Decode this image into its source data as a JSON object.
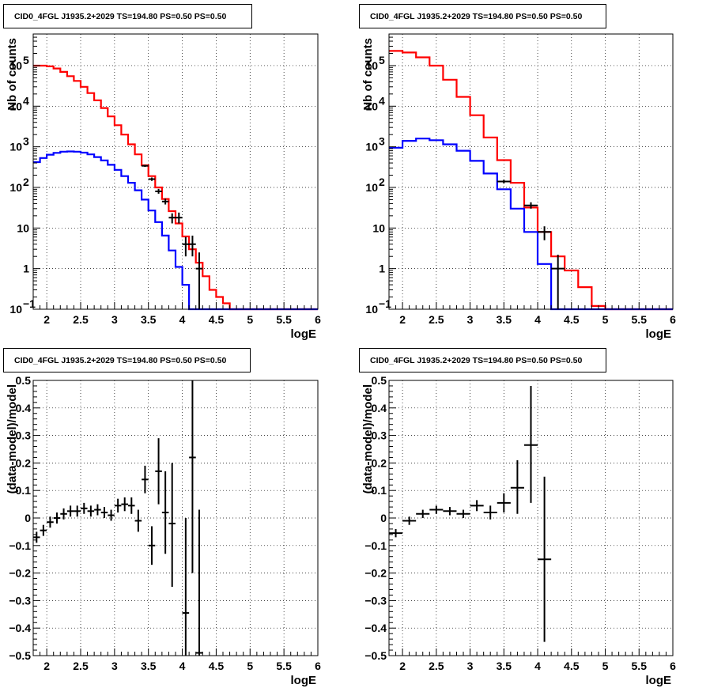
{
  "chart_data": [
    {
      "type": "line",
      "title": "CID0_4FGL J1935.2+2029 TS=194.80 PS=0.50 PS=0.50",
      "xlabel": "logE",
      "ylabel": "Nb of counts",
      "xlim": [
        1.8,
        6.0
      ],
      "ylim": [
        0.1,
        600000
      ],
      "yscale": "log",
      "grid": true,
      "x_ticks": [
        "2",
        "2.5",
        "3",
        "3.5",
        "4",
        "4.5",
        "5",
        "5.5",
        "6"
      ],
      "y_ticks": [
        {
          "value": 0.1,
          "label": "10",
          "exp": "−1"
        },
        {
          "value": 1,
          "label": "1",
          "exp": ""
        },
        {
          "value": 10,
          "label": "10",
          "exp": ""
        },
        {
          "value": 100,
          "label": "10",
          "exp": "2"
        },
        {
          "value": 1000,
          "label": "10",
          "exp": "3"
        },
        {
          "value": 10000,
          "label": "10",
          "exp": "4"
        },
        {
          "value": 100000,
          "label": "10",
          "exp": "5"
        }
      ],
      "x_edges": [
        1.8,
        1.9,
        2.0,
        2.1,
        2.2,
        2.3,
        2.4,
        2.5,
        2.6,
        2.7,
        2.8,
        2.9,
        3.0,
        3.1,
        3.2,
        3.3,
        3.4,
        3.5,
        3.6,
        3.7,
        3.8,
        3.9,
        4.0,
        4.1,
        4.2,
        4.3,
        4.4,
        4.5,
        4.6,
        4.7,
        4.8,
        4.9,
        5.0,
        5.1,
        5.2,
        5.3,
        5.4,
        5.5,
        5.6,
        5.7,
        5.8,
        5.9,
        6.0
      ],
      "series": [
        {
          "color": "#ff0000",
          "style": "step",
          "values": [
            100000,
            100000,
            96000,
            85000,
            70000,
            55000,
            42000,
            30000,
            21000,
            14000,
            9000,
            5600,
            3400,
            2000,
            1150,
            650,
            350,
            190,
            100,
            52,
            26,
            13,
            6.2,
            3,
            1.4,
            0.65,
            0.3,
            0.2,
            0.14,
            0.1,
            0.1,
            0.1,
            0.1,
            0.1,
            0.1,
            0.1,
            0.1,
            0.1,
            0.1,
            0.1,
            0.1,
            0.1
          ]
        },
        {
          "color": "#0000ff",
          "style": "step",
          "values": [
            420,
            530,
            640,
            710,
            760,
            770,
            760,
            720,
            650,
            560,
            460,
            360,
            270,
            190,
            130,
            85,
            50,
            27,
            14,
            6.5,
            2.8,
            1.1,
            0.4,
            0.1,
            0.1,
            0.1,
            0.1,
            0.1,
            0.1,
            0.1,
            0.1,
            0.1,
            0.1,
            0.1,
            0.1,
            0.1,
            0.1,
            0.1,
            0.1,
            0.1,
            0.1,
            0.1
          ]
        },
        {
          "color": "#000000",
          "style": "errorbar",
          "points": [
            {
              "x": 3.45,
              "y": 340,
              "lo": 320,
              "hi": 360,
              "xerr": 0.05
            },
            {
              "x": 3.55,
              "y": 160,
              "lo": 145,
              "hi": 175,
              "xerr": 0.05
            },
            {
              "x": 3.65,
              "y": 80,
              "lo": 70,
              "hi": 92,
              "xerr": 0.05
            },
            {
              "x": 3.75,
              "y": 45,
              "lo": 38,
              "hi": 53,
              "xerr": 0.05
            },
            {
              "x": 3.85,
              "y": 18,
              "lo": 13,
              "hi": 23,
              "xerr": 0.05
            },
            {
              "x": 3.95,
              "y": 18,
              "lo": 13,
              "hi": 24,
              "xerr": 0.05
            },
            {
              "x": 4.05,
              "y": 4,
              "lo": 2,
              "hi": 6,
              "xerr": 0.05
            },
            {
              "x": 4.15,
              "y": 4,
              "lo": 2,
              "hi": 6.5,
              "xerr": 0.05
            },
            {
              "x": 4.25,
              "y": 1,
              "lo": 0.1,
              "hi": 2.5,
              "xerr": 0.05
            }
          ]
        }
      ]
    },
    {
      "type": "line",
      "title": "CID0_4FGL J1935.2+2029 TS=194.80 PS=0.50 PS=0.50",
      "xlabel": "logE",
      "ylabel": "Nb of counts",
      "xlim": [
        1.8,
        6.0
      ],
      "ylim": [
        0.1,
        600000
      ],
      "yscale": "log",
      "grid": true,
      "x_ticks": [
        "2",
        "2.5",
        "3",
        "3.5",
        "4",
        "4.5",
        "5",
        "5.5",
        "6"
      ],
      "y_ticks": [
        {
          "value": 0.1,
          "label": "10",
          "exp": "−1"
        },
        {
          "value": 1,
          "label": "1",
          "exp": ""
        },
        {
          "value": 10,
          "label": "10",
          "exp": ""
        },
        {
          "value": 100,
          "label": "10",
          "exp": "2"
        },
        {
          "value": 1000,
          "label": "10",
          "exp": "3"
        },
        {
          "value": 10000,
          "label": "10",
          "exp": "4"
        },
        {
          "value": 100000,
          "label": "10",
          "exp": "5"
        }
      ],
      "x_edges": [
        1.8,
        2.0,
        2.2,
        2.4,
        2.6,
        2.8,
        3.0,
        3.2,
        3.4,
        3.6,
        3.8,
        4.0,
        4.2,
        4.4,
        4.6,
        4.8,
        5.0,
        5.2,
        5.4,
        5.6,
        5.8,
        6.0
      ],
      "series": [
        {
          "color": "#ff0000",
          "style": "step",
          "values": [
            230000,
            210000,
            160000,
            100000,
            45000,
            17000,
            6000,
            1700,
            470,
            130,
            32,
            8,
            2,
            0.9,
            0.35,
            0.12,
            0.1,
            0.1,
            0.1,
            0.1,
            0.1
          ]
        },
        {
          "color": "#0000ff",
          "style": "step",
          "values": [
            950,
            1400,
            1600,
            1450,
            1150,
            800,
            450,
            220,
            90,
            30,
            8,
            1.3,
            0.1,
            0.1,
            0.1,
            0.1,
            0.1,
            0.1,
            0.1,
            0.1,
            0.1
          ]
        },
        {
          "color": "#000000",
          "style": "errorbar",
          "points": [
            {
              "x": 3.5,
              "y": 140,
              "lo": 125,
              "hi": 155,
              "xerr": 0.1
            },
            {
              "x": 3.9,
              "y": 36,
              "lo": 30,
              "hi": 43,
              "xerr": 0.1
            },
            {
              "x": 4.1,
              "y": 8,
              "lo": 5,
              "hi": 11,
              "xerr": 0.1
            },
            {
              "x": 4.3,
              "y": 1,
              "lo": 0.1,
              "hi": 2.2,
              "xerr": 0.1
            }
          ]
        }
      ]
    },
    {
      "type": "scatter",
      "title": "CID0_4FGL J1935.2+2029 TS=194.80 PS=0.50 PS=0.50",
      "xlabel": "logE",
      "ylabel": "(data-model)/model",
      "xlim": [
        1.8,
        6.0
      ],
      "ylim": [
        -0.5,
        0.5
      ],
      "grid": true,
      "x_ticks": [
        "2",
        "2.5",
        "3",
        "3.5",
        "4",
        "4.5",
        "5",
        "5.5",
        "6"
      ],
      "y_ticks": [
        "−0.5",
        "−0.4",
        "−0.3",
        "−0.2",
        "−0.1",
        "0",
        "0.1",
        "0.2",
        "0.3",
        "0.4",
        "0.5"
      ],
      "series": [
        {
          "color": "#000000",
          "style": "errorbar",
          "points": [
            {
              "x": 1.85,
              "y": -0.07,
              "lo": -0.09,
              "hi": -0.05,
              "xerr": 0.05
            },
            {
              "x": 1.95,
              "y": -0.045,
              "lo": -0.065,
              "hi": -0.025,
              "xerr": 0.05
            },
            {
              "x": 2.05,
              "y": -0.015,
              "lo": -0.035,
              "hi": 0.005,
              "xerr": 0.05
            },
            {
              "x": 2.15,
              "y": 0.0,
              "lo": -0.02,
              "hi": 0.02,
              "xerr": 0.05
            },
            {
              "x": 2.25,
              "y": 0.015,
              "lo": -0.005,
              "hi": 0.035,
              "xerr": 0.05
            },
            {
              "x": 2.35,
              "y": 0.025,
              "lo": 0.005,
              "hi": 0.045,
              "xerr": 0.05
            },
            {
              "x": 2.45,
              "y": 0.025,
              "lo": 0.005,
              "hi": 0.045,
              "xerr": 0.05
            },
            {
              "x": 2.55,
              "y": 0.035,
              "lo": 0.015,
              "hi": 0.055,
              "xerr": 0.05
            },
            {
              "x": 2.65,
              "y": 0.025,
              "lo": 0.005,
              "hi": 0.045,
              "xerr": 0.05
            },
            {
              "x": 2.75,
              "y": 0.03,
              "lo": 0.01,
              "hi": 0.05,
              "xerr": 0.05
            },
            {
              "x": 2.85,
              "y": 0.02,
              "lo": 0.0,
              "hi": 0.04,
              "xerr": 0.05
            },
            {
              "x": 2.95,
              "y": 0.01,
              "lo": -0.01,
              "hi": 0.03,
              "xerr": 0.05
            },
            {
              "x": 3.05,
              "y": 0.045,
              "lo": 0.02,
              "hi": 0.07,
              "xerr": 0.05
            },
            {
              "x": 3.15,
              "y": 0.05,
              "lo": 0.025,
              "hi": 0.075,
              "xerr": 0.05
            },
            {
              "x": 3.25,
              "y": 0.045,
              "lo": 0.015,
              "hi": 0.075,
              "xerr": 0.05
            },
            {
              "x": 3.35,
              "y": -0.01,
              "lo": -0.05,
              "hi": 0.03,
              "xerr": 0.05
            },
            {
              "x": 3.45,
              "y": 0.14,
              "lo": 0.09,
              "hi": 0.19,
              "xerr": 0.05
            },
            {
              "x": 3.55,
              "y": -0.1,
              "lo": -0.17,
              "hi": -0.03,
              "xerr": 0.05
            },
            {
              "x": 3.65,
              "y": 0.17,
              "lo": 0.05,
              "hi": 0.29,
              "xerr": 0.05
            },
            {
              "x": 3.75,
              "y": 0.02,
              "lo": -0.13,
              "hi": 0.17,
              "xerr": 0.05
            },
            {
              "x": 3.85,
              "y": -0.02,
              "lo": -0.25,
              "hi": 0.2,
              "xerr": 0.05
            },
            {
              "x": 4.05,
              "y": -0.345,
              "lo": -0.5,
              "hi": 0.0,
              "xerr": 0.05
            },
            {
              "x": 4.15,
              "y": 0.22,
              "lo": -0.2,
              "hi": 0.5,
              "xerr": 0.05
            },
            {
              "x": 4.25,
              "y": -0.49,
              "lo": -0.5,
              "hi": 0.03,
              "xerr": 0.05
            }
          ]
        }
      ]
    },
    {
      "type": "scatter",
      "title": "CID0_4FGL J1935.2+2029 TS=194.80 PS=0.50 PS=0.50",
      "xlabel": "logE",
      "ylabel": "(data-model)/model",
      "xlim": [
        1.8,
        6.0
      ],
      "ylim": [
        -0.5,
        0.5
      ],
      "grid": true,
      "x_ticks": [
        "2",
        "2.5",
        "3",
        "3.5",
        "4",
        "4.5",
        "5",
        "5.5",
        "6"
      ],
      "y_ticks": [
        "−0.5",
        "−0.4",
        "−0.3",
        "−0.2",
        "−0.1",
        "0",
        "0.1",
        "0.2",
        "0.3",
        "0.4",
        "0.5"
      ],
      "series": [
        {
          "color": "#000000",
          "style": "errorbar",
          "points": [
            {
              "x": 1.9,
              "y": -0.055,
              "lo": -0.07,
              "hi": -0.04,
              "xerr": 0.1
            },
            {
              "x": 2.1,
              "y": -0.01,
              "lo": -0.025,
              "hi": 0.005,
              "xerr": 0.1
            },
            {
              "x": 2.3,
              "y": 0.015,
              "lo": 0.0,
              "hi": 0.03,
              "xerr": 0.1
            },
            {
              "x": 2.5,
              "y": 0.03,
              "lo": 0.015,
              "hi": 0.045,
              "xerr": 0.1
            },
            {
              "x": 2.7,
              "y": 0.025,
              "lo": 0.01,
              "hi": 0.04,
              "xerr": 0.1
            },
            {
              "x": 2.9,
              "y": 0.015,
              "lo": 0.0,
              "hi": 0.03,
              "xerr": 0.1
            },
            {
              "x": 3.1,
              "y": 0.045,
              "lo": 0.025,
              "hi": 0.065,
              "xerr": 0.1
            },
            {
              "x": 3.3,
              "y": 0.02,
              "lo": -0.005,
              "hi": 0.045,
              "xerr": 0.1
            },
            {
              "x": 3.5,
              "y": 0.055,
              "lo": 0.02,
              "hi": 0.09,
              "xerr": 0.1
            },
            {
              "x": 3.7,
              "y": 0.11,
              "lo": 0.015,
              "hi": 0.21,
              "xerr": 0.1
            },
            {
              "x": 3.9,
              "y": 0.265,
              "lo": 0.055,
              "hi": 0.48,
              "xerr": 0.1
            },
            {
              "x": 4.1,
              "y": -0.15,
              "lo": -0.45,
              "hi": 0.15,
              "xerr": 0.1
            }
          ]
        }
      ]
    }
  ]
}
